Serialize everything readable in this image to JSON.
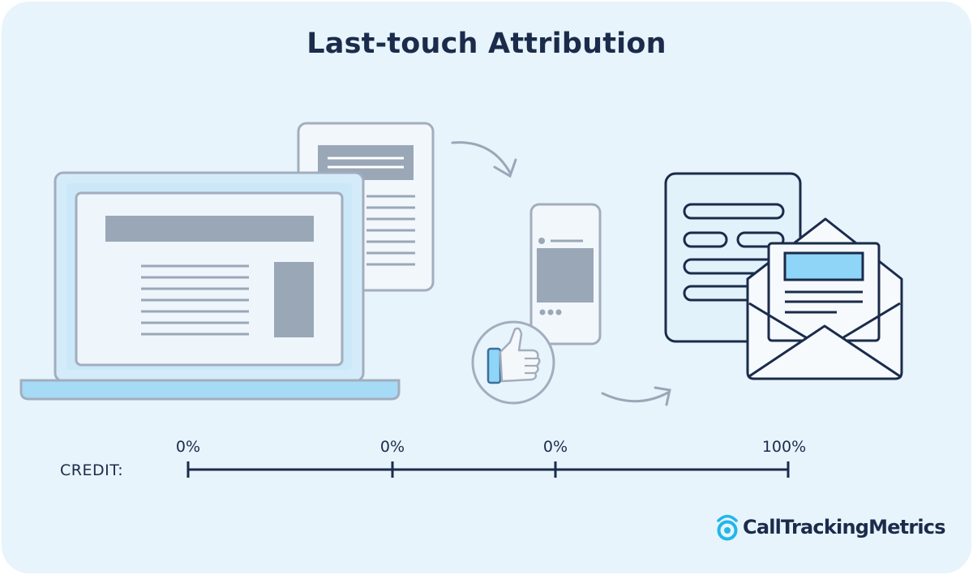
{
  "title": "Last-touch Attribution",
  "credit": {
    "label": "CREDIT:",
    "points": [
      {
        "touchpoint": "laptop-webpage",
        "label": "0%",
        "value": 0
      },
      {
        "touchpoint": "mobile-social",
        "label": "0%",
        "value": 0
      },
      {
        "touchpoint": "social-like",
        "label": "0%",
        "value": 0
      },
      {
        "touchpoint": "email-form",
        "label": "100%",
        "value": 100
      }
    ]
  },
  "brand": {
    "name": "CallTrackingMetrics",
    "icon": "phone-ring-logo-icon"
  },
  "colors": {
    "background": "#e7f4fb",
    "navy": "#1b2b4b",
    "gray_outline": "#a3adbd",
    "gray_fill": "#9aa7b7",
    "light_blue": "#cbe8f9",
    "accent_blue": "#8fd5f7",
    "brand_cyan": "#23b6ea"
  }
}
